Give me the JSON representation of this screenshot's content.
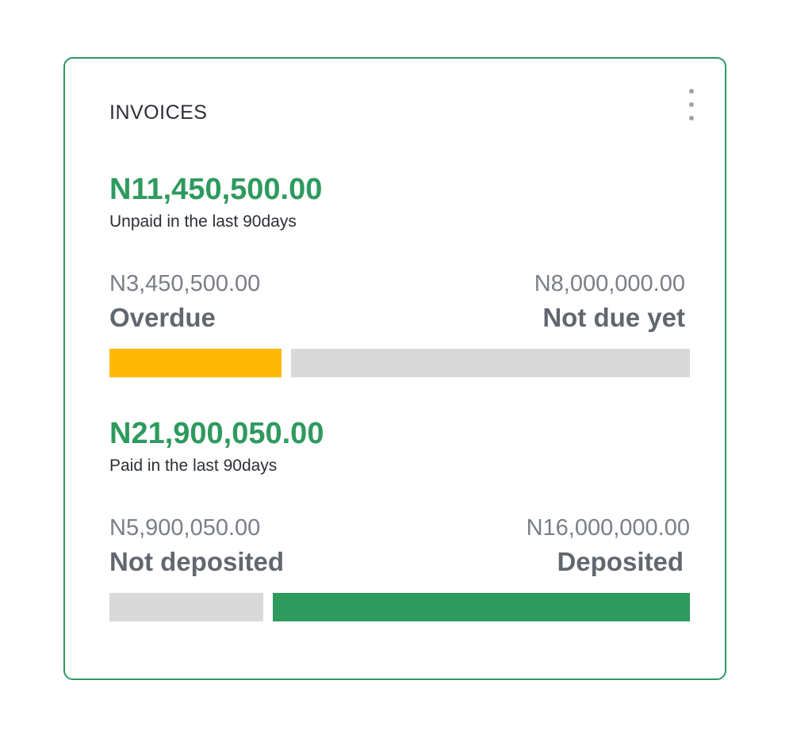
{
  "card": {
    "title": "INVOICES",
    "menu_icon": "kebab-menu-icon"
  },
  "unpaid": {
    "total": "N11,450,500.00",
    "caption": "Unpaid in the last 90days",
    "left": {
      "amount": "N3,450,500.00",
      "label": "Overdue",
      "value": 3450500,
      "color": "#fdb905"
    },
    "right": {
      "amount": "N8,000,000.00",
      "label": "Not due yet",
      "value": 8000000,
      "color": "#d9d9d9"
    }
  },
  "paid": {
    "total": "N21,900,050.00",
    "caption": "Paid in the last 90days",
    "left": {
      "amount": "N5,900,050.00",
      "label": "Not deposited",
      "value": 5900050,
      "color": "#d9d9d9"
    },
    "right": {
      "amount": "N16,000,000.00",
      "label": "Deposited",
      "value": 16000000,
      "color": "#2e9a5e"
    }
  }
}
